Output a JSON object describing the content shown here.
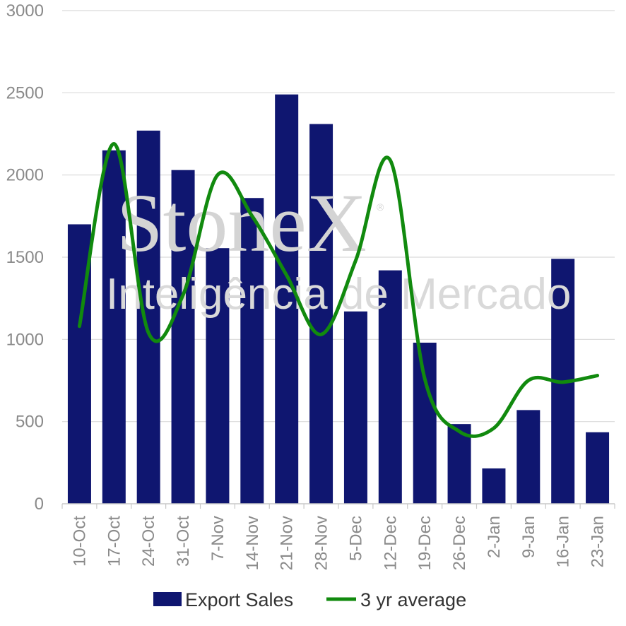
{
  "watermark": {
    "brand": "StoneX",
    "registered": "®",
    "tagline": "Inteligência de Mercado"
  },
  "chart_data": {
    "type": "bar",
    "categories": [
      "10-Oct",
      "17-Oct",
      "24-Oct",
      "31-Oct",
      "7-Nov",
      "14-Nov",
      "21-Nov",
      "28-Nov",
      "5-Dec",
      "12-Dec",
      "19-Dec",
      "26-Dec",
      "2-Jan",
      "9-Jan",
      "16-Jan",
      "23-Jan"
    ],
    "series": [
      {
        "name": "Export Sales",
        "type": "bar",
        "color": "#0f1670",
        "values": [
          1700,
          2150,
          2270,
          2030,
          1555,
          1860,
          2490,
          2310,
          1170,
          1420,
          980,
          485,
          215,
          570,
          1490,
          435
        ]
      },
      {
        "name": "3 yr average",
        "type": "line",
        "color": "#118a0e",
        "values": [
          1080,
          2190,
          1040,
          1270,
          2000,
          1750,
          1390,
          1030,
          1480,
          2090,
          760,
          440,
          460,
          750,
          740,
          780
        ]
      }
    ],
    "ylim": [
      0,
      3000
    ],
    "yticks": [
      0,
      500,
      1000,
      1500,
      2000,
      2500,
      3000
    ],
    "grid": true,
    "legend_position": "bottom"
  }
}
